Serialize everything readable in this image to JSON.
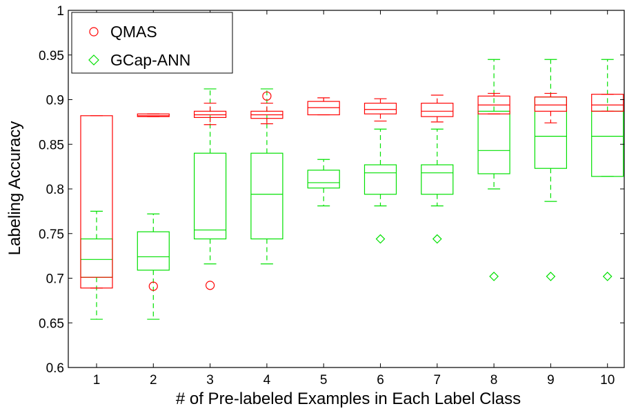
{
  "chart_data": {
    "type": "box",
    "xlabel": "# of Pre-labeled Examples in Each Label Class",
    "ylabel": "Labeling Accuracy",
    "ylim": [
      0.6,
      1.0
    ],
    "yticks": [
      "0.6",
      "0.65",
      "0.7",
      "0.75",
      "0.8",
      "0.85",
      "0.9",
      "0.95",
      "1"
    ],
    "categories": [
      "1",
      "2",
      "3",
      "4",
      "5",
      "6",
      "7",
      "8",
      "9",
      "10"
    ],
    "grid": false,
    "legend": {
      "position": "top-left"
    },
    "series": [
      {
        "name": "QMAS",
        "color": "#ff0000",
        "marker": "circle",
        "boxes": [
          {
            "whisker_low": 0.689,
            "q1": 0.689,
            "median": 0.701,
            "q3": 0.882,
            "whisker_high": 0.882,
            "outliers": []
          },
          {
            "whisker_low": 0.881,
            "q1": 0.881,
            "median": 0.882,
            "q3": 0.884,
            "whisker_high": 0.884,
            "outliers": [
              0.691
            ]
          },
          {
            "whisker_low": 0.872,
            "q1": 0.88,
            "median": 0.883,
            "q3": 0.887,
            "whisker_high": 0.896,
            "outliers": [
              0.692
            ]
          },
          {
            "whisker_low": 0.873,
            "q1": 0.879,
            "median": 0.883,
            "q3": 0.887,
            "whisker_high": 0.896,
            "outliers": [
              0.904
            ]
          },
          {
            "whisker_low": 0.883,
            "q1": 0.883,
            "median": 0.891,
            "q3": 0.898,
            "whisker_high": 0.902,
            "outliers": []
          },
          {
            "whisker_low": 0.876,
            "q1": 0.884,
            "median": 0.889,
            "q3": 0.896,
            "whisker_high": 0.901,
            "outliers": []
          },
          {
            "whisker_low": 0.875,
            "q1": 0.881,
            "median": 0.887,
            "q3": 0.896,
            "whisker_high": 0.905,
            "outliers": []
          },
          {
            "whisker_low": 0.884,
            "q1": 0.884,
            "median": 0.894,
            "q3": 0.904,
            "whisker_high": 0.907,
            "outliers": []
          },
          {
            "whisker_low": 0.874,
            "q1": 0.887,
            "median": 0.894,
            "q3": 0.903,
            "whisker_high": 0.907,
            "outliers": []
          },
          {
            "whisker_low": 0.887,
            "q1": 0.887,
            "median": 0.894,
            "q3": 0.906,
            "whisker_high": 0.906,
            "outliers": []
          }
        ]
      },
      {
        "name": "GCap-ANN",
        "color": "#00e000",
        "marker": "diamond",
        "boxes": [
          {
            "whisker_low": 0.654,
            "q1": 0.701,
            "median": 0.721,
            "q3": 0.744,
            "whisker_high": 0.775,
            "outliers": []
          },
          {
            "whisker_low": 0.654,
            "q1": 0.709,
            "median": 0.724,
            "q3": 0.752,
            "whisker_high": 0.772,
            "outliers": []
          },
          {
            "whisker_low": 0.716,
            "q1": 0.744,
            "median": 0.754,
            "q3": 0.84,
            "whisker_high": 0.912,
            "outliers": []
          },
          {
            "whisker_low": 0.716,
            "q1": 0.744,
            "median": 0.794,
            "q3": 0.84,
            "whisker_high": 0.912,
            "outliers": []
          },
          {
            "whisker_low": 0.781,
            "q1": 0.801,
            "median": 0.807,
            "q3": 0.821,
            "whisker_high": 0.833,
            "outliers": []
          },
          {
            "whisker_low": 0.781,
            "q1": 0.794,
            "median": 0.818,
            "q3": 0.827,
            "whisker_high": 0.867,
            "outliers": [
              0.744
            ]
          },
          {
            "whisker_low": 0.781,
            "q1": 0.794,
            "median": 0.818,
            "q3": 0.827,
            "whisker_high": 0.867,
            "outliers": [
              0.744
            ]
          },
          {
            "whisker_low": 0.8,
            "q1": 0.817,
            "median": 0.843,
            "q3": 0.887,
            "whisker_high": 0.945,
            "outliers": [
              0.702
            ]
          },
          {
            "whisker_low": 0.786,
            "q1": 0.823,
            "median": 0.859,
            "q3": 0.903,
            "whisker_high": 0.945,
            "outliers": [
              0.702
            ]
          },
          {
            "whisker_low": 0.814,
            "q1": 0.814,
            "median": 0.859,
            "q3": 0.887,
            "whisker_high": 0.945,
            "outliers": [
              0.702
            ]
          }
        ]
      }
    ]
  }
}
